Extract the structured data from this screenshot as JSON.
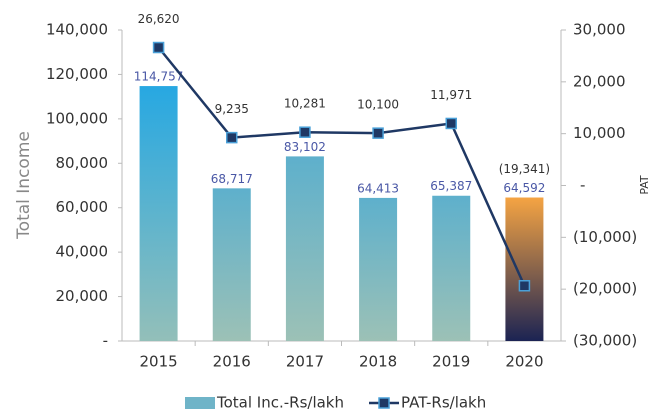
{
  "chart_data": {
    "type": "bar_line",
    "categories": [
      "2015",
      "2016",
      "2017",
      "2018",
      "2019",
      "2020"
    ],
    "ylabel": "Total Income",
    "y2label": "PAT",
    "ylim": [
      0,
      140000
    ],
    "yticks": [
      {
        "value": 0,
        "label": "-"
      },
      {
        "value": 20000,
        "label": "20,000"
      },
      {
        "value": 40000,
        "label": "40,000"
      },
      {
        "value": 60000,
        "label": "60,000"
      },
      {
        "value": 80000,
        "label": "80,000"
      },
      {
        "value": 100000,
        "label": "100,000"
      },
      {
        "value": 120000,
        "label": "120,000"
      },
      {
        "value": 140000,
        "label": "140,000"
      }
    ],
    "y2lim": [
      -30000,
      30000
    ],
    "y2ticks": [
      {
        "value": -30000,
        "label": "(30,000)"
      },
      {
        "value": -20000,
        "label": "(20,000)"
      },
      {
        "value": -10000,
        "label": "(10,000)"
      },
      {
        "value": 0,
        "label": "-"
      },
      {
        "value": 10000,
        "label": "10,000"
      },
      {
        "value": 20000,
        "label": "20,000"
      },
      {
        "value": 30000,
        "label": "30,000"
      }
    ],
    "series": [
      {
        "name": "Total Inc.-Rs/lakh",
        "type": "bar",
        "color": "#6fb4c8",
        "gradients": [
          [
            "#27a8e2",
            "#93bfb9"
          ],
          [
            "#5eb0cc",
            "#9cc1b6"
          ],
          [
            "#5eb0cc",
            "#9cc1b6"
          ],
          [
            "#5eb0cc",
            "#9cc1b6"
          ],
          [
            "#5eb0cc",
            "#9cc1b6"
          ],
          [
            "#f5a443",
            "#1b2353"
          ]
        ],
        "values": [
          114757,
          68717,
          83102,
          64413,
          65387,
          64592
        ],
        "value_labels": [
          "114,757",
          "68,717",
          "83,102",
          "64,413",
          "65,387",
          "64,592"
        ]
      },
      {
        "name": "PAT-Rs/lakh",
        "type": "line",
        "axis": "y2",
        "color": "#1f3864",
        "marker_edge": "#4aa0d8",
        "values": [
          26620,
          9235,
          10281,
          10100,
          11971,
          -19341
        ],
        "value_labels": [
          "26,620",
          "9,235",
          "10,281",
          "10,100",
          "11,971",
          "(19,341)"
        ]
      }
    ]
  }
}
